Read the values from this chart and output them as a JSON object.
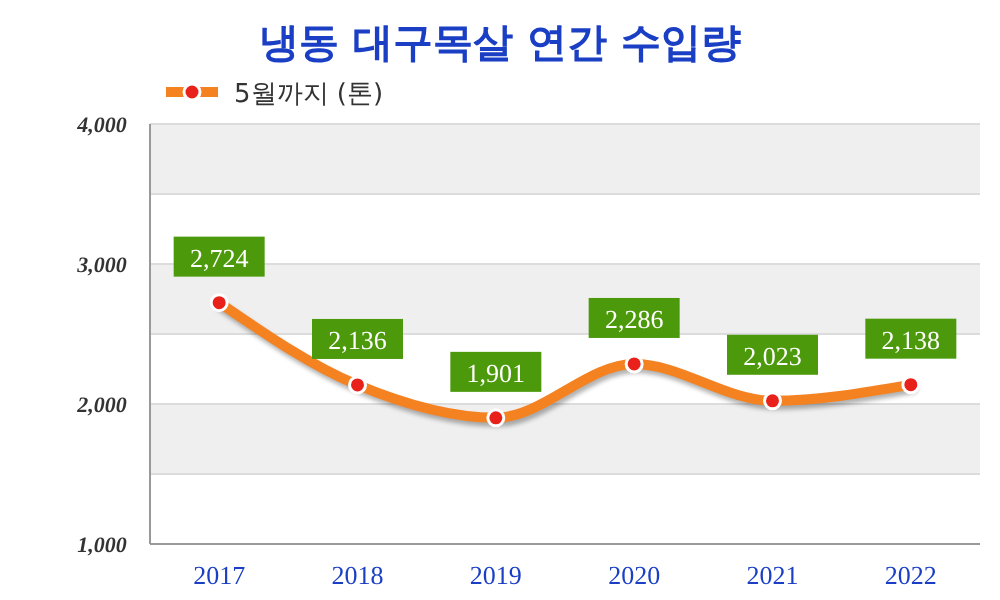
{
  "chart_data": {
    "type": "line",
    "title": "냉동 대구목살 연간 수입량",
    "categories": [
      "2017",
      "2018",
      "2019",
      "2020",
      "2021",
      "2022"
    ],
    "series": [
      {
        "name": "5월까지 (톤)",
        "color": "#f58220",
        "values": [
          2724,
          2136,
          1901,
          2286,
          2023,
          2138
        ],
        "value_labels": [
          "2,724",
          "2,136",
          "1,901",
          "2,286",
          "2,023",
          "2,138"
        ]
      }
    ],
    "ylim": [
      1000,
      4000
    ],
    "yticks": [
      {
        "value": 1000,
        "label": "1,000"
      },
      {
        "value": 1500,
        "label": null
      },
      {
        "value": 2000,
        "label": "2,000"
      },
      {
        "value": 2500,
        "label": null
      },
      {
        "value": 3000,
        "label": "3,000"
      },
      {
        "value": 3500,
        "label": null
      },
      {
        "value": 4000,
        "label": "4,000"
      }
    ],
    "grid": "y",
    "legend": "top left",
    "marker": "circle"
  }
}
